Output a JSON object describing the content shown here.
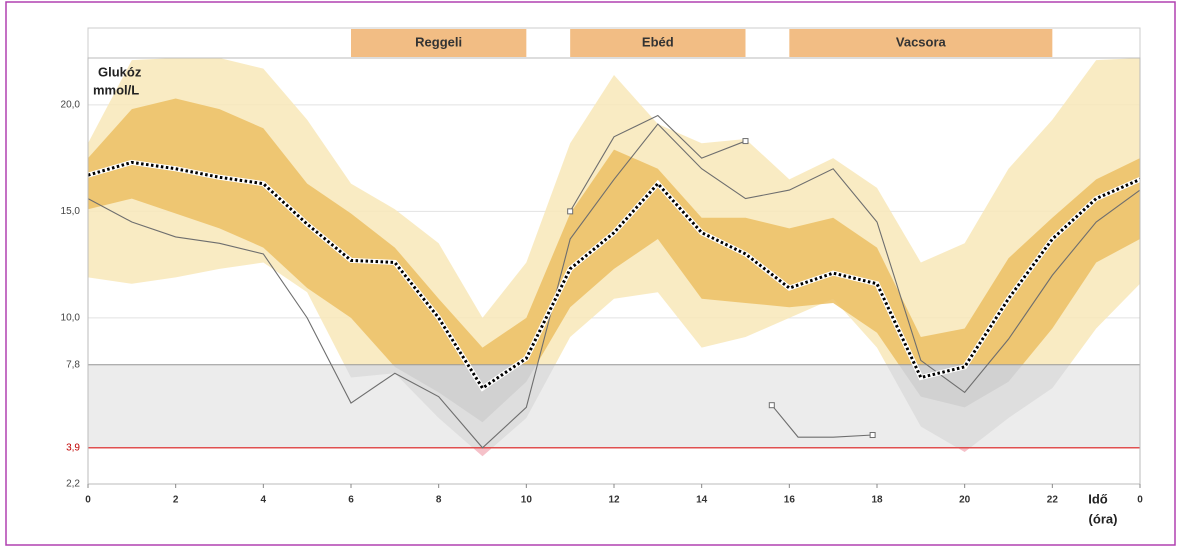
{
  "chart_data": {
    "type": "agp",
    "y_label": [
      "Glukóz",
      "mmol/L"
    ],
    "x_label": [
      "Idő",
      "(óra)"
    ],
    "x": [
      0,
      1,
      2,
      3,
      4,
      5,
      6,
      7,
      8,
      9,
      10,
      11,
      12,
      13,
      14,
      15,
      16,
      17,
      18,
      19,
      20,
      21,
      22,
      23,
      24
    ],
    "xlim": [
      0,
      24
    ],
    "xticks": [
      0,
      2,
      4,
      6,
      8,
      10,
      12,
      14,
      16,
      18,
      20,
      22,
      {
        "value": 24,
        "label": "0"
      }
    ],
    "ylim": [
      2.2,
      22.2
    ],
    "yticks": [
      {
        "value": 2.2,
        "label": "2,2"
      },
      {
        "value": 3.9,
        "label": "3,9"
      },
      {
        "value": 7.8,
        "label": "7,8"
      },
      {
        "value": 10,
        "label": "10,0"
      },
      {
        "value": 15,
        "label": "15,0"
      },
      {
        "value": 20,
        "label": "20,0"
      }
    ],
    "target_range": {
      "low": 3.9,
      "high": 7.8
    },
    "meals": [
      {
        "label": "Reggeli",
        "start": 6,
        "end": 10
      },
      {
        "label": "Ebéd",
        "start": 11,
        "end": 15
      },
      {
        "label": "Vacsora",
        "start": 16,
        "end": 22
      }
    ],
    "bands": [
      {
        "lower": [
          11.9,
          11.6,
          11.9,
          12.3,
          12.6,
          11.2,
          7.2,
          7.4,
          5.3,
          3.5,
          5.3,
          9.1,
          10.9,
          11.2,
          8.6,
          9.1,
          10.0,
          10.9,
          8.6,
          4.9,
          3.7,
          5.3,
          6.7,
          9.5,
          11.6
        ],
        "upper": [
          18.2,
          22.1,
          22.2,
          22.2,
          21.7,
          19.3,
          16.3,
          15.1,
          13.5,
          10.0,
          12.6,
          18.2,
          21.4,
          19.1,
          18.2,
          18.4,
          16.5,
          17.5,
          16.1,
          12.6,
          13.5,
          17.0,
          19.3,
          22.1,
          22.2
        ],
        "color": "#f8e8b8",
        "grey": "#dcdcdc",
        "low_color": "#f3b6c0"
      },
      {
        "lower": [
          15.1,
          15.6,
          14.9,
          14.2,
          13.3,
          11.4,
          10.0,
          7.7,
          6.5,
          5.1,
          7.0,
          10.5,
          12.3,
          13.7,
          10.9,
          10.7,
          10.5,
          10.7,
          9.3,
          6.3,
          5.8,
          7.0,
          9.5,
          12.6,
          13.7
        ],
        "upper": [
          17.5,
          19.8,
          20.3,
          19.8,
          18.9,
          16.3,
          14.9,
          13.3,
          10.9,
          8.6,
          10.0,
          14.9,
          17.9,
          17.0,
          14.7,
          14.7,
          14.2,
          14.7,
          13.3,
          9.1,
          9.5,
          12.8,
          14.7,
          16.5,
          17.5
        ],
        "color": "#ecc064",
        "grey": "#cfcfcf",
        "low_color": "#ec9aa8"
      }
    ],
    "traces": [
      {
        "x": [
          0,
          1,
          2,
          3,
          4,
          5,
          6,
          7,
          8,
          9,
          10,
          11,
          12,
          13,
          14,
          15,
          16,
          17,
          18,
          19,
          20,
          21,
          22,
          23,
          24
        ],
        "values": [
          15.6,
          14.5,
          13.8,
          13.5,
          13.0,
          10.0,
          6.0,
          7.4,
          6.3,
          3.9,
          5.8,
          13.7,
          16.5,
          19.1,
          17.0,
          15.6,
          16.0,
          17.0,
          14.5,
          8.0,
          6.5,
          9.0,
          12.0,
          14.5,
          16.0
        ],
        "color": "#6e6e6e"
      },
      {
        "x": [
          11,
          12,
          13,
          14,
          15
        ],
        "values": [
          15.0,
          18.5,
          19.5,
          17.5,
          18.3
        ],
        "color": "#6e6e6e"
      },
      {
        "x": [
          15.6,
          16.2,
          17,
          17.9
        ],
        "values": [
          5.9,
          4.4,
          4.4,
          4.5
        ],
        "color": "#6e6e6e"
      }
    ],
    "median": {
      "values": [
        16.7,
        17.3,
        17.0,
        16.6,
        16.3,
        14.4,
        12.7,
        12.6,
        10.0,
        6.7,
        8.1,
        12.3,
        14.0,
        16.3,
        14.0,
        13.0,
        11.4,
        12.1,
        11.6,
        7.2,
        7.7,
        10.9,
        13.7,
        15.6,
        16.5
      ],
      "color": "#000000"
    }
  }
}
